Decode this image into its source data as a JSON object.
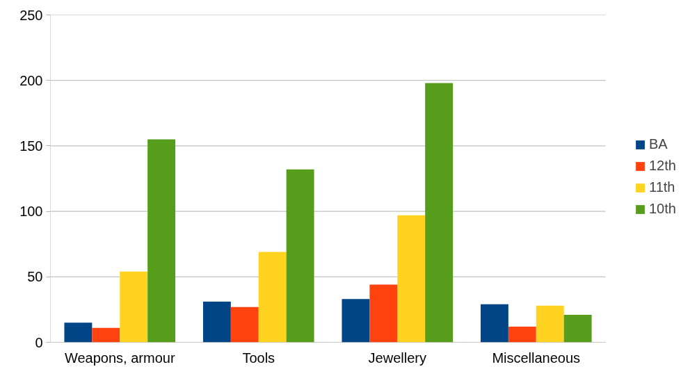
{
  "chart_data": {
    "type": "bar",
    "categories": [
      "Weapons, armour",
      "Tools",
      "Jewellery",
      "Miscellaneous"
    ],
    "series": [
      {
        "name": "BA",
        "color": "#004586",
        "values": [
          15,
          31,
          33,
          29
        ]
      },
      {
        "name": "12th",
        "color": "#ff420e",
        "values": [
          11,
          27,
          44,
          12
        ]
      },
      {
        "name": "11th",
        "color": "#ffd320",
        "values": [
          54,
          69,
          97,
          28
        ]
      },
      {
        "name": "10th",
        "color": "#579d1c",
        "values": [
          155,
          132,
          198,
          21
        ]
      }
    ],
    "ylim": [
      0,
      250
    ],
    "yticks": [
      0,
      50,
      100,
      150,
      200,
      250
    ],
    "grid": "y",
    "legend": "right"
  }
}
